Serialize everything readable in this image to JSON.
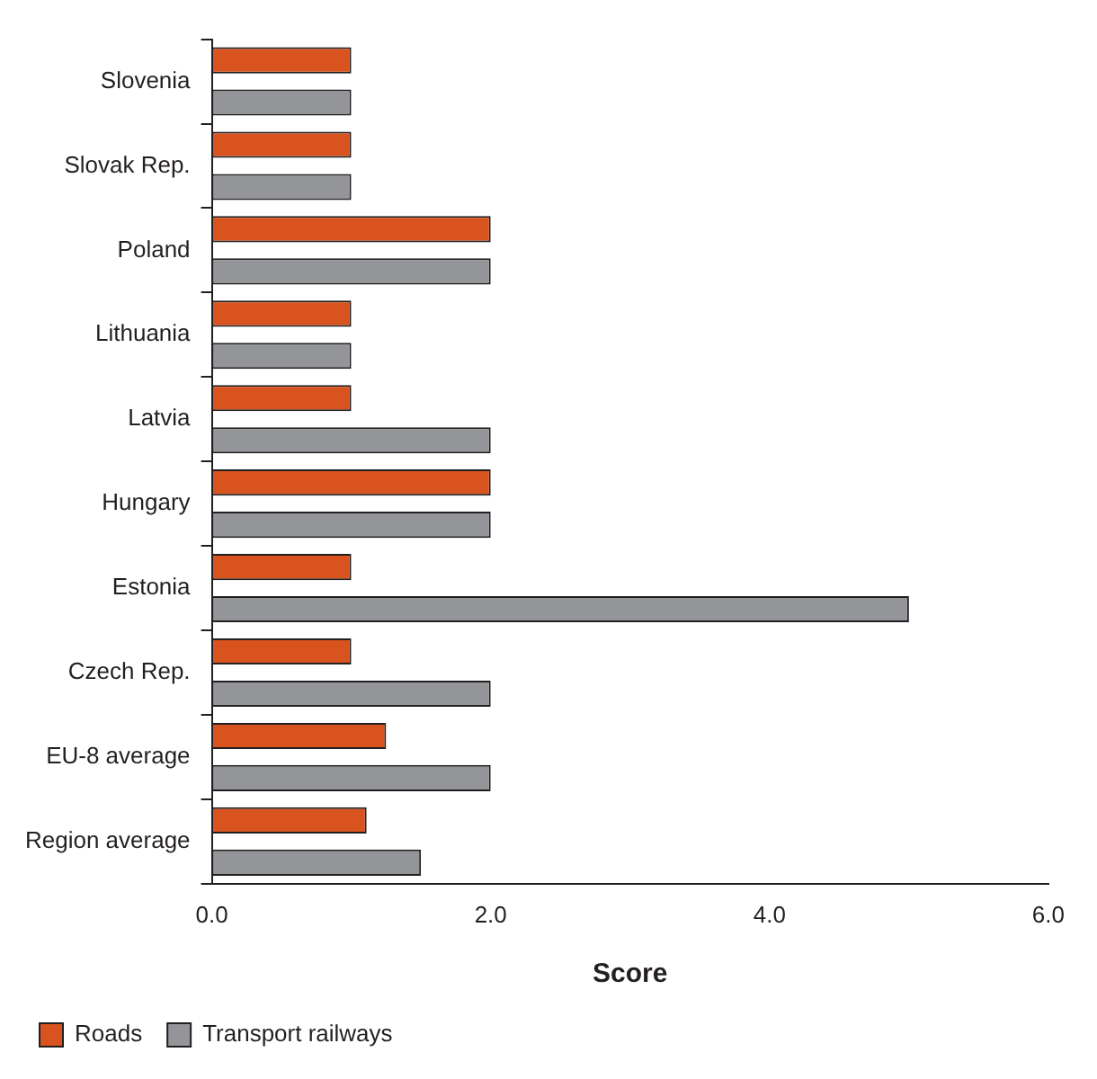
{
  "chart_data": {
    "type": "bar",
    "orientation": "horizontal",
    "xlabel": "Score",
    "categories": [
      "Slovenia",
      "Slovak Rep.",
      "Poland",
      "Lithuania",
      "Latvia",
      "Hungary",
      "Estonia",
      "Czech Rep.",
      "EU-8 average",
      "Region average"
    ],
    "series": [
      {
        "name": "Roads",
        "color": "#d9531e",
        "values": [
          1,
          1,
          2,
          1,
          1,
          2,
          1,
          1,
          1.25,
          1.11
        ]
      },
      {
        "name": "Transport railways",
        "color": "#939598",
        "values": [
          1,
          1,
          2,
          1,
          2,
          2,
          5,
          2,
          2,
          1.5
        ]
      }
    ],
    "xlim": [
      0,
      6
    ],
    "xticks": [
      {
        "value": 0,
        "label": "0.0"
      },
      {
        "value": 2,
        "label": "2.0"
      },
      {
        "value": 4,
        "label": "4.0"
      },
      {
        "value": 6,
        "label": "6.0"
      }
    ],
    "grid": false,
    "legend": "bottom left"
  }
}
